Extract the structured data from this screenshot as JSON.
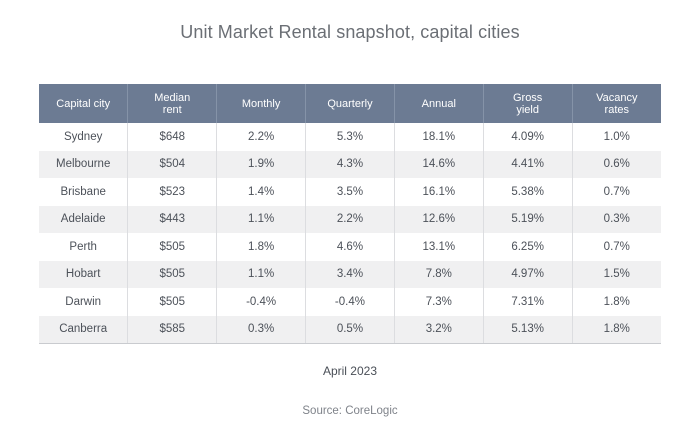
{
  "chart_data": {
    "type": "table",
    "title": "Unit Market Rental snapshot, capital cities",
    "columns": [
      {
        "lines": [
          "Capital city"
        ]
      },
      {
        "lines": [
          "Median",
          "rent"
        ]
      },
      {
        "lines": [
          "Monthly"
        ]
      },
      {
        "lines": [
          "Quarterly"
        ]
      },
      {
        "lines": [
          "Annual"
        ]
      },
      {
        "lines": [
          "Gross",
          "yield"
        ]
      },
      {
        "lines": [
          "Vacancy",
          "rates"
        ]
      }
    ],
    "rows": [
      [
        "Sydney",
        "$648",
        "2.2%",
        "5.3%",
        "18.1%",
        "4.09%",
        "1.0%"
      ],
      [
        "Melbourne",
        "$504",
        "1.9%",
        "4.3%",
        "14.6%",
        "4.41%",
        "0.6%"
      ],
      [
        "Brisbane",
        "$523",
        "1.4%",
        "3.5%",
        "16.1%",
        "5.38%",
        "0.7%"
      ],
      [
        "Adelaide",
        "$443",
        "1.1%",
        "2.2%",
        "12.6%",
        "5.19%",
        "0.3%"
      ],
      [
        "Perth",
        "$505",
        "1.8%",
        "4.6%",
        "13.1%",
        "6.25%",
        "0.7%"
      ],
      [
        "Hobart",
        "$505",
        "1.1%",
        "3.4%",
        "7.8%",
        "4.97%",
        "1.5%"
      ],
      [
        "Darwin",
        "$505",
        "-0.4%",
        "-0.4%",
        "7.3%",
        "7.31%",
        "1.8%"
      ],
      [
        "Canberra",
        "$585",
        "0.3%",
        "0.5%",
        "3.2%",
        "5.13%",
        "1.8%"
      ]
    ],
    "date": "April 2023",
    "source": "Source: CoreLogic"
  },
  "colors": {
    "header_bg": "#6c7b93",
    "header_text": "#ffffff",
    "row_alt_bg": "#f0f0f1",
    "body_text": "#4c5159"
  }
}
